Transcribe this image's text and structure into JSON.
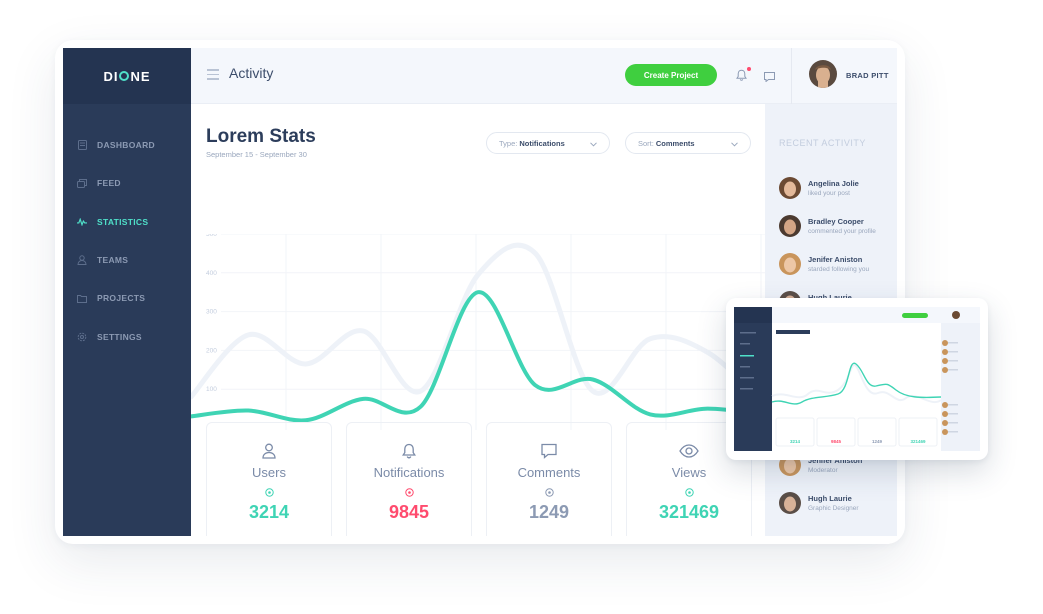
{
  "app": {
    "logo": "DIONE",
    "title": "Activity"
  },
  "header": {
    "create_button": "Create Project",
    "user_name": "BRAD PITT"
  },
  "sidebar": {
    "items": [
      {
        "label": "DASHBOARD",
        "icon": "dashboard-icon"
      },
      {
        "label": "FEED",
        "icon": "feed-icon"
      },
      {
        "label": "STATISTICS",
        "icon": "statistics-icon",
        "active": true
      },
      {
        "label": "TEAMS",
        "icon": "teams-icon"
      },
      {
        "label": "PROJECTS",
        "icon": "projects-icon"
      },
      {
        "label": "SETTINGS",
        "icon": "settings-icon"
      }
    ]
  },
  "stats": {
    "title": "Lorem Stats",
    "date_range": "September 15 - September 30",
    "type_filter": {
      "label": "Type:",
      "value": "Notifications"
    },
    "sort_filter": {
      "label": "Sort:",
      "value": "Comments"
    }
  },
  "cards": [
    {
      "label": "Users",
      "value": "3214",
      "icon": "user-icon",
      "color": "#3fd4b4"
    },
    {
      "label": "Notifications",
      "value": "9845",
      "icon": "bell-icon",
      "color": "#ff4b6e"
    },
    {
      "label": "Comments",
      "value": "1249",
      "icon": "comment-icon",
      "color": "#8c9ab3"
    },
    {
      "label": "Views",
      "value": "321469",
      "icon": "eye-icon",
      "color": "#3fd4b4"
    }
  ],
  "activity": {
    "heading": "RECENT ACTIVITY",
    "items": [
      {
        "name": "Angelina Jolie",
        "desc": "liked your post"
      },
      {
        "name": "Bradley Cooper",
        "desc": "commented your profile"
      },
      {
        "name": "Jenifer Aniston",
        "desc": "starded following you"
      },
      {
        "name": "Hugh Laurie",
        "desc": ""
      }
    ],
    "bottom_items": [
      {
        "name": "Jenifer Aniston",
        "desc": "Moderator"
      },
      {
        "name": "Hugh Laurie",
        "desc": "Graphic Designer"
      }
    ]
  },
  "chart_data": {
    "type": "line",
    "y_ticks": [
      "500",
      "400",
      "300",
      "200",
      "100"
    ],
    "ylim": [
      0,
      500
    ],
    "grid": true,
    "series": [
      {
        "values": [
          30,
          45,
          20,
          75,
          55,
          350,
          110,
          125,
          35,
          50,
          35
        ],
        "color": "#3fd4b4"
      },
      {
        "values": [
          80,
          240,
          165,
          250,
          95,
          395,
          450,
          95,
          230,
          195,
          60
        ],
        "color": "#eef2f8"
      }
    ]
  },
  "colors": {
    "accent": "#4fe0c9",
    "sidebar": "#2a3b59",
    "create": "#3fcf3f",
    "alert": "#ff4b6e"
  }
}
